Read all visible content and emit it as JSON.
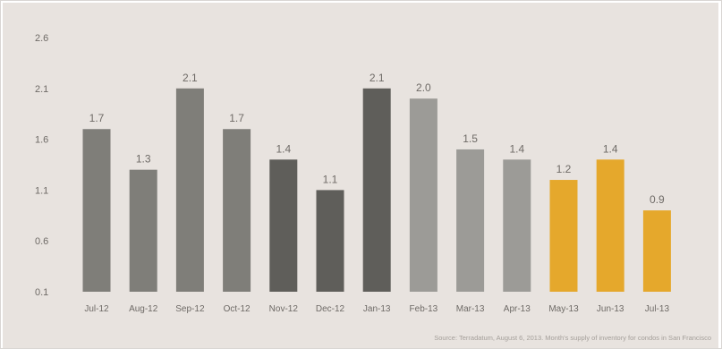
{
  "chart_data": {
    "type": "bar",
    "categories": [
      "Jul-12",
      "Aug-12",
      "Sep-12",
      "Oct-12",
      "Nov-12",
      "Dec-12",
      "Jan-13",
      "Feb-13",
      "Mar-13",
      "Apr-13",
      "May-13",
      "Jun-13",
      "Jul-13"
    ],
    "values": [
      1.7,
      1.3,
      2.1,
      1.7,
      1.4,
      1.1,
      2.1,
      2.0,
      1.5,
      1.4,
      1.2,
      1.4,
      0.9
    ],
    "data_labels": [
      "1.7",
      "1.3",
      "2.1",
      "1.7",
      "1.4",
      "1.1",
      "2.1",
      "2.0",
      "1.5",
      "1.4",
      "1.2",
      "1.4",
      "0.9"
    ],
    "bar_colors": [
      "#7f7e79",
      "#7f7e79",
      "#7f7e79",
      "#7f7e79",
      "#5f5e5a",
      "#5f5e5a",
      "#5f5e5a",
      "#9c9b97",
      "#9c9b97",
      "#9c9b97",
      "#e5a82c",
      "#e5a82c",
      "#e5a82c"
    ],
    "title": "",
    "xlabel": "",
    "ylabel": "",
    "ylim": [
      0.1,
      2.6
    ],
    "yticks": [
      "0.1",
      "0.6",
      "1.1",
      "1.6",
      "2.1",
      "2.6"
    ],
    "grid": false,
    "legend": "none",
    "source_note": "Source: Terradatum, August 6, 2013. Month's supply of inventory for condos in San Francisco"
  }
}
